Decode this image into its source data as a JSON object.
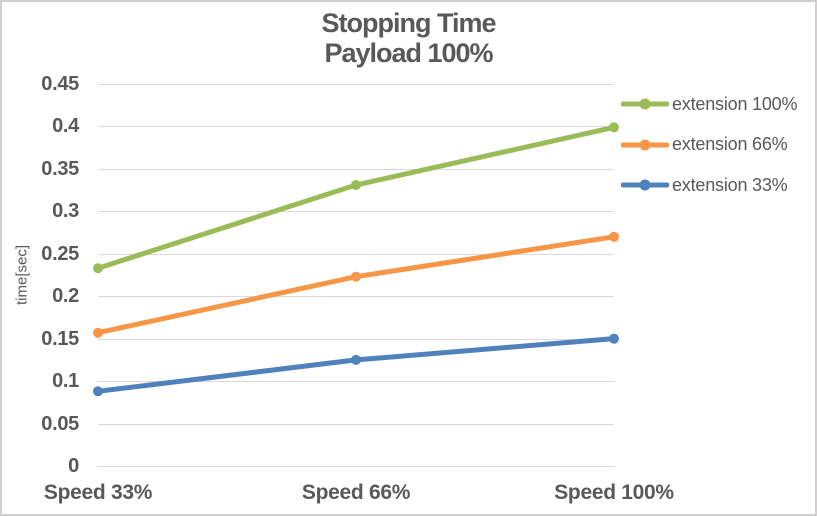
{
  "window": {
    "background": "#ffffff",
    "border_color": "#d0cece"
  },
  "chart_data": {
    "type": "line",
    "title": "Stopping Time",
    "subtitle": "Payload 100%",
    "ylabel": "time[sec]",
    "xlabel": "",
    "categories": [
      "Speed 33%",
      "Speed 66%",
      "Speed 100%"
    ],
    "series": [
      {
        "name": "extension 100%",
        "color": "#9BBB59",
        "values": [
          0.233,
          0.331,
          0.399
        ]
      },
      {
        "name": "extension 66%",
        "color": "#F79646",
        "values": [
          0.157,
          0.223,
          0.27
        ]
      },
      {
        "name": "extension 33%",
        "color": "#4F81BD",
        "values": [
          0.088,
          0.125,
          0.15
        ]
      }
    ],
    "ylim": [
      0,
      0.45
    ],
    "ytick_step": 0.05,
    "ytick_labels": [
      "0",
      "0.05",
      "0.1",
      "0.15",
      "0.2",
      "0.25",
      "0.3",
      "0.35",
      "0.4",
      "0.45"
    ],
    "grid": true,
    "gridline_color": "#D9D9D9",
    "text_color": "#595959",
    "legend_position": "right",
    "marker": "circle"
  }
}
